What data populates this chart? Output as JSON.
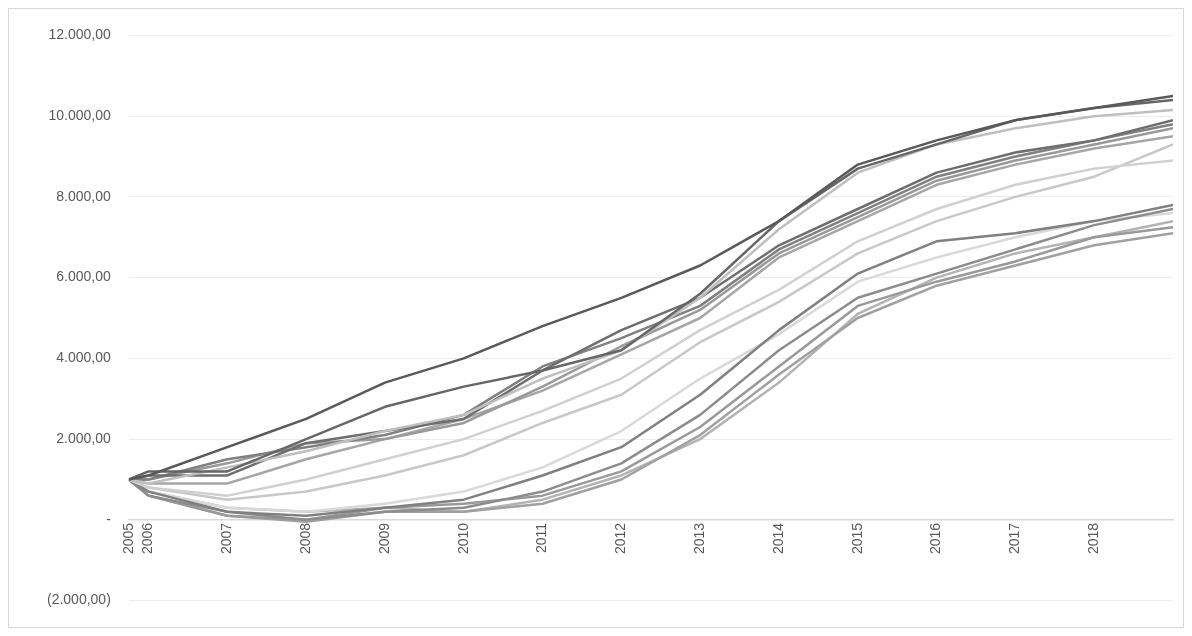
{
  "chart_data": {
    "type": "line",
    "x": [
      "2005-10",
      "2006-01",
      "2007-01",
      "2008-01",
      "2009-01",
      "2010-01",
      "2011-01",
      "2012-01",
      "2013-01",
      "2014-01",
      "2015-01",
      "2016-01",
      "2017-01",
      "2018-01",
      "2019-01"
    ],
    "xlim": [
      "2005-10",
      "2019-01"
    ],
    "xticks": [
      {
        "value": "2005-10",
        "label": "2005"
      },
      "2006",
      "2007",
      "2008",
      "2009",
      "2010",
      "2011",
      "2012",
      "2013",
      "2014",
      "2015",
      "2016",
      "2017",
      "2018"
    ],
    "ylim": [
      -2000,
      12000
    ],
    "yticks": [
      {
        "value": -2000,
        "label": "(2.000,00)"
      },
      {
        "value": 0,
        "label": "-"
      },
      {
        "value": 2000,
        "label": "2.000,00"
      },
      {
        "value": 4000,
        "label": "4.000,00"
      },
      {
        "value": 6000,
        "label": "6.000,00"
      },
      {
        "value": 8000,
        "label": "8.000,00"
      },
      {
        "value": 10000,
        "label": "10.000,00"
      },
      {
        "value": 12000,
        "label": "12.000,00"
      }
    ],
    "grid": "y",
    "legend": false,
    "marker": "none",
    "line_style": "solid",
    "series": [
      {
        "color": "#595959",
        "values": [
          1000,
          1100,
          1800,
          2500,
          3400,
          4000,
          4800,
          5500,
          6300,
          7400,
          8800,
          9400,
          9900,
          10200,
          10500
        ]
      },
      {
        "color": "#666666",
        "values": [
          1000,
          1200,
          1200,
          2000,
          2800,
          3300,
          3700,
          4200,
          5600,
          7400,
          8700,
          9300,
          9900,
          10200,
          10400
        ]
      },
      {
        "color": "#bfbfbf",
        "values": [
          1000,
          900,
          1300,
          1700,
          2200,
          2600,
          3500,
          4200,
          5500,
          7200,
          8600,
          9300,
          9700,
          10000,
          10150
        ]
      },
      {
        "color": "#6e6e6e",
        "values": [
          1000,
          1100,
          1100,
          1900,
          2200,
          2500,
          3700,
          4700,
          5500,
          6800,
          7700,
          8600,
          9100,
          9400,
          9900
        ]
      },
      {
        "color": "#808080",
        "values": [
          1000,
          1000,
          1500,
          1800,
          2100,
          2600,
          3800,
          4500,
          5300,
          6700,
          7600,
          8500,
          9000,
          9400,
          9800
        ]
      },
      {
        "color": "#999999",
        "values": [
          1000,
          1000,
          1400,
          1900,
          2000,
          2400,
          3300,
          4300,
          5200,
          6600,
          7500,
          8400,
          8900,
          9300,
          9700
        ]
      },
      {
        "color": "#a6a6a6",
        "values": [
          1000,
          900,
          900,
          1500,
          2000,
          2500,
          3200,
          4100,
          5000,
          6500,
          7400,
          8300,
          8800,
          9200,
          9500
        ]
      },
      {
        "color": "#d0d0d0",
        "values": [
          1000,
          800,
          600,
          1000,
          1500,
          2000,
          2700,
          3500,
          4700,
          5700,
          6900,
          7700,
          8300,
          8700,
          8900
        ]
      },
      {
        "color": "#c8c8c8",
        "values": [
          1000,
          800,
          500,
          700,
          1100,
          1600,
          2400,
          3100,
          4400,
          5400,
          6600,
          7400,
          8000,
          8500,
          9300
        ]
      },
      {
        "color": "#808080",
        "values": [
          1000,
          700,
          200,
          100,
          300,
          500,
          1100,
          1800,
          3100,
          4700,
          6100,
          6900,
          7100,
          7400,
          7800
        ]
      },
      {
        "color": "#8c8c8c",
        "values": [
          1000,
          600,
          200,
          0,
          200,
          300,
          700,
          1400,
          2600,
          4200,
          5500,
          6100,
          6700,
          7300,
          7700
        ]
      },
      {
        "color": "#d9d9d9",
        "values": [
          1000,
          700,
          300,
          200,
          400,
          700,
          1300,
          2200,
          3500,
          4600,
          5900,
          6500,
          7000,
          7400,
          7600
        ]
      },
      {
        "color": "#999999",
        "values": [
          1000,
          600,
          100,
          0,
          300,
          400,
          600,
          1200,
          2300,
          3800,
          5300,
          5900,
          6400,
          7000,
          7250
        ]
      },
      {
        "color": "#a0a0a0",
        "values": [
          1000,
          600,
          100,
          -50,
          200,
          200,
          400,
          1000,
          2100,
          3600,
          5000,
          5800,
          6300,
          6800,
          7100
        ]
      },
      {
        "color": "#b3b3b3",
        "values": [
          1000,
          700,
          300,
          200,
          300,
          200,
          500,
          1100,
          2000,
          3400,
          5100,
          6000,
          6600,
          7000,
          7400
        ]
      }
    ]
  }
}
